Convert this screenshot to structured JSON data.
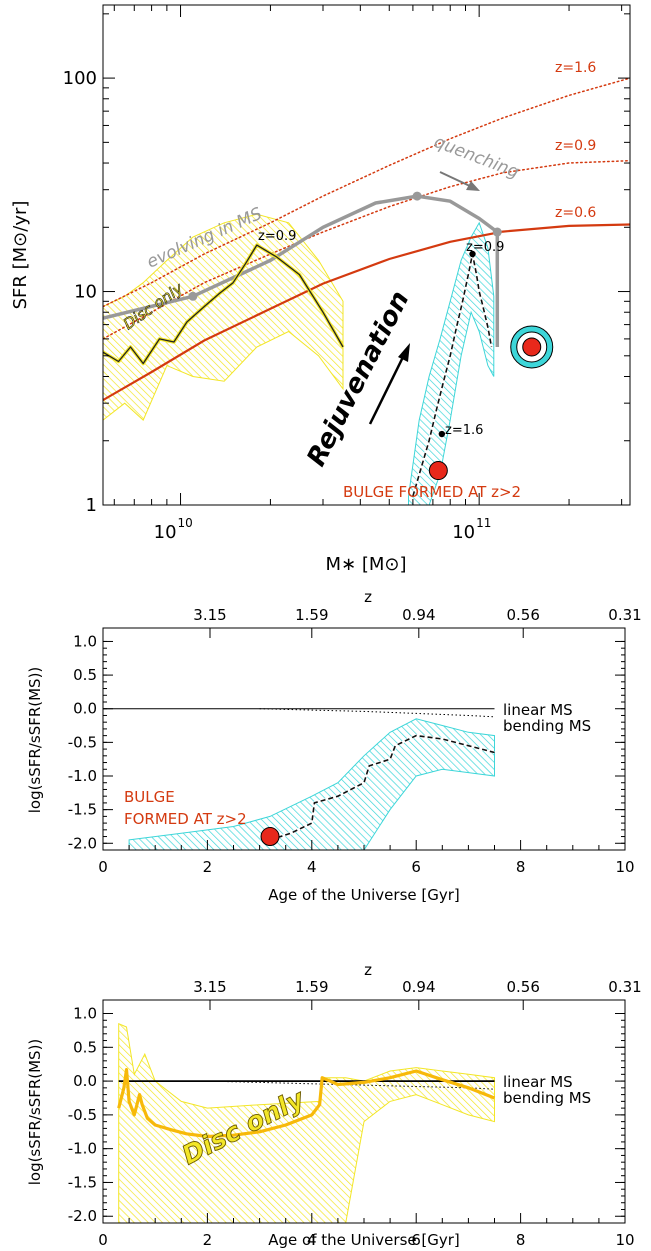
{
  "chart_data": [
    {
      "type": "line",
      "xlabel": "M∗ [M⊙]",
      "ylabel": "SFR [M⊙/yr]",
      "xscale": "log",
      "yscale": "log",
      "xlim": [
        5500000000.0,
        320000000000.0
      ],
      "ylim": [
        1,
        220
      ],
      "x_ticklabels": [
        {
          "value": 10000000000.0,
          "base": "10",
          "exp": "10"
        },
        {
          "value": 100000000000.0,
          "base": "10",
          "exp": "11"
        }
      ],
      "y_ticklabels": [
        {
          "value": 1,
          "label": "1"
        },
        {
          "value": 10,
          "label": "10"
        },
        {
          "value": 100,
          "label": "100"
        }
      ],
      "ms_lines": [
        {
          "name": "z=0.6",
          "style": "solid",
          "color": "#d43a10",
          "x": [
            5500000000.0,
            8000000000.0,
            12000000000.0,
            20000000000.0,
            30000000000.0,
            50000000000.0,
            80000000000.0,
            120000000000.0,
            200000000000.0,
            320000000000.0
          ],
          "y": [
            3.1,
            4.2,
            5.9,
            8.3,
            10.9,
            14.2,
            17.1,
            19.1,
            20.3,
            20.6
          ]
        },
        {
          "name": "z=0.9",
          "style": "dotted",
          "color": "#d43a10",
          "x": [
            5500000000.0,
            8000000000.0,
            12000000000.0,
            20000000000.0,
            30000000000.0,
            50000000000.0,
            80000000000.0,
            120000000000.0,
            200000000000.0,
            320000000000.0
          ],
          "y": [
            6.0,
            8.0,
            11.0,
            15.0,
            19.0,
            25.0,
            31.0,
            36.0,
            40.0,
            41.0
          ]
        },
        {
          "name": "z=1.6",
          "style": "dotted",
          "color": "#d43a10",
          "x": [
            5500000000.0,
            8000000000.0,
            12000000000.0,
            20000000000.0,
            30000000000.0,
            50000000000.0,
            80000000000.0,
            120000000000.0,
            200000000000.0,
            320000000000.0
          ],
          "y": [
            8.5,
            11.0,
            15.0,
            21.0,
            28.0,
            39.0,
            52.0,
            65.0,
            83.0,
            100.0
          ]
        }
      ],
      "ms_labels": [
        "z=1.6",
        "z=0.9",
        "z=0.6"
      ],
      "grey_track": {
        "x": [
          5500000000.0,
          11000000000.0,
          20000000000.0,
          30000000000.0,
          45000000000.0,
          62000000000.0,
          80000000000.0,
          100000000000.0,
          115000000000.0,
          115000000000.0
        ],
        "y": [
          7.5,
          9.5,
          14.0,
          20.0,
          26.0,
          28.0,
          26.5,
          22.0,
          19.0,
          5.5
        ],
        "points_x": [
          11000000000.0,
          62000000000.0,
          115000000000.0
        ],
        "points_y": [
          9.5,
          28.0,
          19.0
        ]
      },
      "disc_band": {
        "x": [
          5500000000.0,
          6500000000.0,
          7500000000.0,
          9000000000.0,
          11000000000.0,
          14000000000.0,
          18000000000.0,
          23000000000.0,
          29000000000.0,
          35000000000.0
        ],
        "upper": [
          8.5,
          9.5,
          11.0,
          14.0,
          18.0,
          21.0,
          23.0,
          21.0,
          14.0,
          9.0
        ],
        "lower": [
          2.5,
          3.0,
          2.5,
          4.5,
          4.0,
          3.8,
          5.5,
          6.5,
          5.0,
          3.5
        ]
      },
      "disc_track": {
        "x": [
          5500000000.0,
          6200000000.0,
          6800000000.0,
          7500000000.0,
          8500000000.0,
          9500000000.0,
          10500000000.0,
          12000000000.0,
          13500000000.0,
          15000000000.0,
          16500000000.0,
          18000000000.0,
          21000000000.0,
          25000000000.0,
          30000000000.0,
          35000000000.0
        ],
        "y": [
          5.2,
          4.7,
          5.5,
          4.6,
          6.0,
          5.8,
          7.2,
          8.5,
          9.8,
          11.0,
          13.5,
          16.5,
          14.5,
          12.0,
          8.0,
          5.5
        ]
      },
      "bulge_band": {
        "x": [
          58000000000.0,
          63000000000.0,
          68000000000.0,
          74000000000.0,
          80000000000.0,
          87000000000.0,
          94000000000.0,
          100000000000.0,
          107000000000.0,
          112000000000.0
        ],
        "upper": [
          1.1,
          2.5,
          4.0,
          6.0,
          9.0,
          14.0,
          18.0,
          21.0,
          16.0,
          9.5
        ],
        "lower": [
          1.0,
          1.0,
          1.0,
          1.4,
          2.5,
          5.0,
          8.0,
          6.5,
          4.5,
          4.0
        ]
      },
      "bulge_track": {
        "x": [
          60000000000.0,
          64000000000.0,
          68000000000.0,
          72000000000.0,
          76000000000.0,
          80000000000.0,
          84000000000.0,
          88000000000.0,
          92000000000.0,
          95000000000.0,
          98000000000.0,
          100000000000.0,
          103000000000.0,
          107000000000.0,
          110000000000.0
        ],
        "y": [
          1.1,
          1.5,
          2.0,
          2.8,
          3.8,
          5.0,
          6.8,
          9.0,
          12.0,
          15.0,
          12.0,
          10.0,
          8.5,
          6.8,
          5.5
        ]
      },
      "markers": [
        {
          "label": "z=0.9",
          "x": 95000000000.0,
          "y": 15.0,
          "kind": "z-point"
        },
        {
          "label": "z=1.6",
          "x": 75000000000.0,
          "y": 2.15,
          "kind": "z-point"
        },
        {
          "label": "",
          "x": 73000000000.0,
          "y": 1.45,
          "kind": "bulge-start"
        },
        {
          "label": "",
          "x": 150000000000.0,
          "y": 5.5,
          "kind": "final"
        }
      ],
      "annotations": {
        "disc_z": "z=0.9",
        "evolving": "evolving in MS",
        "quenching": "quenching",
        "disc_only": "Disc only",
        "rejuvenation": "Rejuvenation",
        "bulge": "BULGE FORMED AT z>2"
      },
      "colors": {
        "ms": "#d43a10",
        "track": "#999999",
        "disc": "#f3e627",
        "disc_line": "#222222",
        "bulge": "#3dd6d9",
        "marker": "#e8281b",
        "dashed": "#111111"
      }
    },
    {
      "type": "line",
      "xlabel": "Age of the Universe [Gyr]",
      "ylabel": "log(sSFR/sSFR(MS))",
      "top_label": "z",
      "xlim": [
        0,
        10
      ],
      "ylim": [
        -2.1,
        1.2
      ],
      "x_ticks": [
        0,
        2,
        4,
        6,
        8,
        10
      ],
      "y_ticks": [
        1.0,
        0.5,
        0.0,
        -0.5,
        -1.0,
        -1.5,
        -2.0
      ],
      "y_ticklabels": [
        "1.0",
        "0.5",
        "0.0",
        "-0.5",
        "-1.0",
        "-1.5",
        "-2.0"
      ],
      "top_ticks": [
        {
          "x": 2.05,
          "label": "3.15"
        },
        {
          "x": 4.0,
          "label": "1.59"
        },
        {
          "x": 6.05,
          "label": "0.94"
        },
        {
          "x": 8.05,
          "label": "0.56"
        },
        {
          "x": 10.0,
          "label": "0.31"
        }
      ],
      "linear_ms": {
        "label": "linear MS",
        "x": [
          0,
          7.5
        ],
        "y": [
          0.0,
          0.0
        ]
      },
      "bending_ms": {
        "label": "bending MS",
        "x": [
          3.0,
          4.0,
          5.0,
          6.0,
          7.0,
          7.5
        ],
        "y": [
          0.0,
          -0.02,
          -0.04,
          -0.07,
          -0.1,
          -0.12
        ]
      },
      "band": {
        "x": [
          0.5,
          1.5,
          2.5,
          3.2,
          4.0,
          4.5,
          5.0,
          5.5,
          6.0,
          6.5,
          7.0,
          7.5
        ],
        "upper": [
          -1.95,
          -1.85,
          -1.75,
          -1.6,
          -1.3,
          -1.1,
          -0.7,
          -0.35,
          -0.15,
          -0.25,
          -0.35,
          -0.4
        ],
        "lower": [
          -2.1,
          -2.1,
          -2.1,
          -2.1,
          -2.1,
          -2.1,
          -2.1,
          -1.5,
          -1.0,
          -0.9,
          -0.95,
          -1.0
        ]
      },
      "track": {
        "x": [
          3.2,
          3.6,
          4.0,
          4.05,
          4.5,
          5.0,
          5.1,
          5.5,
          5.6,
          6.0,
          6.5,
          7.0,
          7.5
        ],
        "y": [
          -1.95,
          -1.85,
          -1.7,
          -1.4,
          -1.3,
          -1.1,
          -0.85,
          -0.75,
          -0.55,
          -0.4,
          -0.45,
          -0.55,
          -0.65
        ]
      },
      "marker": {
        "x": 3.2,
        "y": -1.9
      },
      "annotation": {
        "line1": "BULGE",
        "line2": "FORMED AT z>2"
      },
      "colors": {
        "band": "#3dd6d9",
        "marker": "#e8281b",
        "label": "#d43a10"
      }
    },
    {
      "type": "line",
      "xlabel": "Age of the Universe [Gyr]",
      "ylabel": "log(sSFR/sSFR(MS))",
      "top_label": "z",
      "xlim": [
        0,
        10
      ],
      "ylim": [
        -2.1,
        1.2
      ],
      "x_ticks": [
        0,
        2,
        4,
        6,
        8,
        10
      ],
      "y_ticks": [
        1.0,
        0.5,
        0.0,
        -0.5,
        -1.0,
        -1.5,
        -2.0
      ],
      "y_ticklabels": [
        "1.0",
        "0.5",
        "0.0",
        "-0.5",
        "-1.0",
        "-1.5",
        "-2.0"
      ],
      "top_ticks": [
        {
          "x": 2.05,
          "label": "3.15"
        },
        {
          "x": 4.0,
          "label": "1.59"
        },
        {
          "x": 6.05,
          "label": "0.94"
        },
        {
          "x": 8.05,
          "label": "0.56"
        },
        {
          "x": 10.0,
          "label": "0.31"
        }
      ],
      "linear_ms": {
        "label": "linear MS",
        "x": [
          0.3,
          7.5
        ],
        "y": [
          0.0,
          0.0
        ]
      },
      "bending_ms": {
        "label": "bending MS",
        "x": [
          2.0,
          3.0,
          4.0,
          5.0,
          6.0,
          7.0,
          7.5
        ],
        "y": [
          0.0,
          -0.02,
          -0.04,
          -0.06,
          -0.08,
          -0.1,
          -0.12
        ]
      },
      "band": {
        "x": [
          0.3,
          0.45,
          0.6,
          0.8,
          1.0,
          1.5,
          2.0,
          3.0,
          4.15,
          4.2,
          4.65,
          5.0,
          5.5,
          6.0,
          6.5,
          7.0,
          7.5
        ],
        "upper": [
          0.85,
          0.8,
          0.1,
          0.4,
          0.0,
          -0.3,
          -0.4,
          -0.35,
          -0.3,
          0.05,
          0.05,
          0.0,
          0.15,
          0.2,
          0.15,
          0.1,
          0.05
        ],
        "lower": [
          -2.1,
          -2.1,
          -2.1,
          -2.1,
          -2.1,
          -2.1,
          -2.1,
          -2.1,
          -2.1,
          -2.1,
          -2.1,
          -0.6,
          -0.3,
          -0.2,
          -0.35,
          -0.5,
          -0.6
        ]
      },
      "track": {
        "x": [
          0.3,
          0.4,
          0.45,
          0.5,
          0.6,
          0.7,
          0.75,
          0.85,
          1.0,
          1.3,
          1.6,
          2.0,
          2.5,
          3.0,
          3.5,
          4.0,
          4.15,
          4.2,
          4.5,
          5.0,
          5.5,
          6.0,
          6.5,
          7.0,
          7.5
        ],
        "y": [
          -0.4,
          -0.1,
          0.17,
          -0.3,
          -0.5,
          -0.2,
          -0.35,
          -0.55,
          -0.65,
          -0.72,
          -0.78,
          -0.82,
          -0.8,
          -0.75,
          -0.65,
          -0.5,
          -0.35,
          0.05,
          -0.05,
          -0.02,
          0.05,
          0.15,
          0.02,
          -0.1,
          -0.25
        ]
      },
      "annotation": {
        "text": "Disc only"
      },
      "colors": {
        "band": "#f3e627",
        "track": "#f7b90a"
      }
    }
  ]
}
